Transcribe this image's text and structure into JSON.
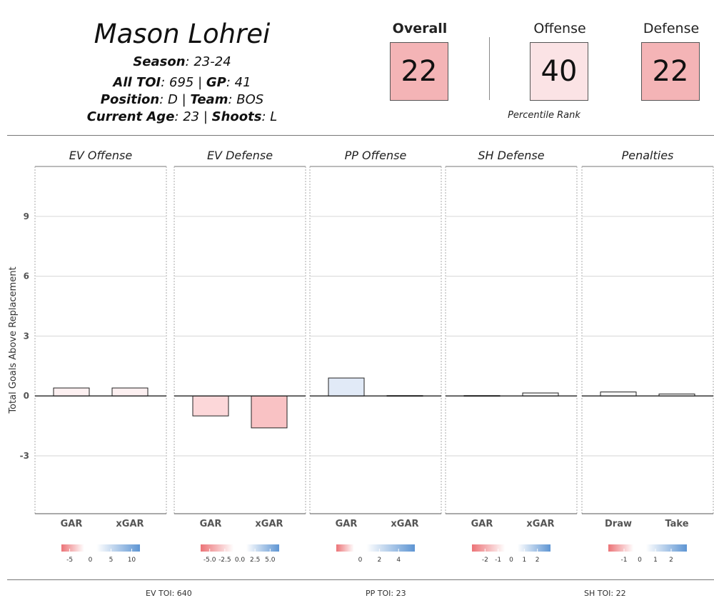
{
  "player": {
    "name": "Mason Lohrei",
    "season_label": "Season",
    "season": "23-24",
    "toi_label": "All TOI",
    "toi": "695",
    "gp_label": "GP",
    "gp": "41",
    "position_label": "Position",
    "position": "D",
    "team_label": "Team",
    "team": "BOS",
    "age_label": "Current Age",
    "age": "23",
    "shoots_label": "Shoots",
    "shoots": "L"
  },
  "percentiles": {
    "overall": {
      "label": "Overall",
      "value": "22",
      "color": "#f4b4b6"
    },
    "offense": {
      "label": "Offense",
      "value": "40",
      "color": "#fbe3e5"
    },
    "defense": {
      "label": "Defense",
      "value": "22",
      "color": "#f4b4b6"
    },
    "caption": "Percentile Rank"
  },
  "chart_data": {
    "type": "bar",
    "ylabel": "Total Goals Above Replacement",
    "ylim": [
      -5.9,
      11.5
    ],
    "yticks": [
      -3,
      0,
      3,
      6,
      9
    ],
    "grid": true,
    "panels": [
      {
        "title": "EV Offense",
        "categories": [
          "GAR",
          "xGAR"
        ],
        "values": [
          0.4,
          0.4
        ],
        "colors": [
          "#fdf0f1",
          "#fdf0f1"
        ],
        "scale": {
          "ticks": [
            "-5",
            "0",
            "5",
            "10"
          ],
          "tick_positions": [
            -5,
            0,
            5,
            10
          ],
          "range": [
            -7,
            12
          ]
        }
      },
      {
        "title": "EV Defense",
        "categories": [
          "GAR",
          "xGAR"
        ],
        "values": [
          -1.0,
          -1.6
        ],
        "colors": [
          "#fcd7d9",
          "#f9c2c4"
        ],
        "scale": {
          "ticks": [
            "-5.0",
            "-2.5",
            "0.0",
            "2.5",
            "5.0"
          ],
          "tick_positions": [
            -5,
            -2.5,
            0,
            2.5,
            5
          ],
          "range": [
            -6.5,
            6.5
          ]
        }
      },
      {
        "title": "PP Offense",
        "categories": [
          "GAR",
          "xGAR"
        ],
        "values": [
          0.9,
          0.02
        ],
        "colors": [
          "#e1eaf7",
          "#f4f4f4"
        ],
        "scale": {
          "ticks": [
            "0",
            "2",
            "4"
          ],
          "tick_positions": [
            0,
            2,
            4
          ],
          "range": [
            -2.5,
            5.7
          ]
        }
      },
      {
        "title": "SH Defense",
        "categories": [
          "GAR",
          "xGAR"
        ],
        "values": [
          0.02,
          0.15
        ],
        "colors": [
          "#f4f4f4",
          "#f7f7f7"
        ],
        "scale": {
          "ticks": [
            "-2",
            "-1",
            "0",
            "1",
            "2"
          ],
          "tick_positions": [
            -2,
            -1,
            0,
            1,
            2
          ],
          "range": [
            -3,
            3
          ]
        }
      },
      {
        "title": "Penalties",
        "categories": [
          "Draw",
          "Take"
        ],
        "values": [
          0.2,
          0.1
        ],
        "colors": [
          "#f7f7f7",
          "#f7f7f7"
        ],
        "scale": {
          "ticks": [
            "-1",
            "0",
            "1",
            "2"
          ],
          "tick_positions": [
            -1,
            0,
            1,
            2
          ],
          "range": [
            -2,
            3
          ]
        }
      }
    ]
  },
  "footer": {
    "ev_toi": "EV TOI: 640",
    "pp_toi": "PP TOI: 23",
    "sh_toi": "SH TOI: 22"
  }
}
